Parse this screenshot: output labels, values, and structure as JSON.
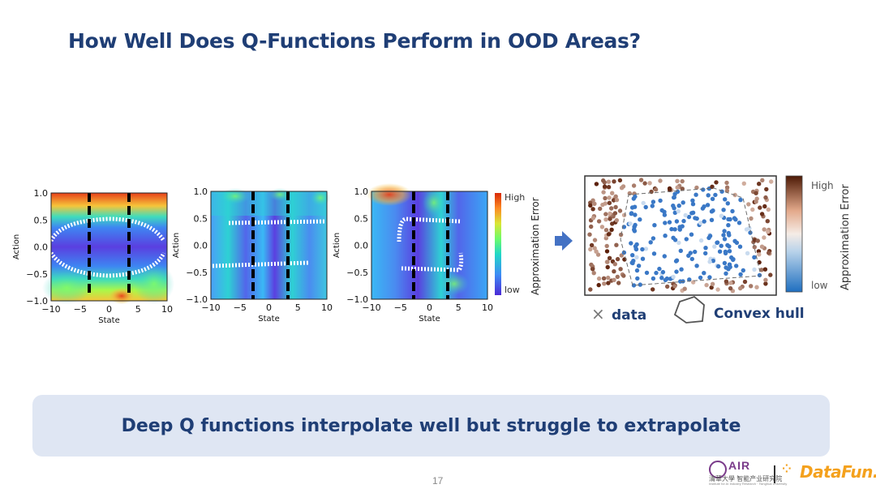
{
  "slide": {
    "title": "How Well Does Q-Functions Perform in OOD Areas?",
    "takeaway": "Deep Q functions interpolate well but struggle to extrapolate",
    "page_number": "17"
  },
  "heatmaps": {
    "x_label": "State",
    "y_label": "Action",
    "x_ticks": [
      "−10",
      "−5",
      "0",
      "5",
      "10"
    ],
    "y_ticks": [
      "1.0",
      "0.5",
      "0.0",
      "−0.5",
      "−1.0"
    ],
    "colorbar_high": "High",
    "colorbar_low": "low",
    "colorbar_title": "Approximation Error",
    "cmap": [
      "#30123b",
      "#4145ab",
      "#4675ed",
      "#39a2fc",
      "#1bcfd4",
      "#24eca6",
      "#61fc6c",
      "#a4fc3b",
      "#d1e834",
      "#f3c63a",
      "#fe9b2d",
      "#f36315",
      "#d93806",
      "#b11901",
      "#7a0402"
    ]
  },
  "convex_hull_panel": {
    "colorbar_high": "High",
    "colorbar_low": "low",
    "colorbar_title": "Approximation Error",
    "legend_data": "data",
    "legend_hull": "Convex hull",
    "low_color": "#3a78c6",
    "high_color": "#5a1e08"
  },
  "logos": {
    "org_mark": "AIR",
    "org_cn": "清華大學 智能产业研究院",
    "org_en": "Institute for AI Industry Research · Tsinghua University",
    "partner": "DataFun."
  }
}
